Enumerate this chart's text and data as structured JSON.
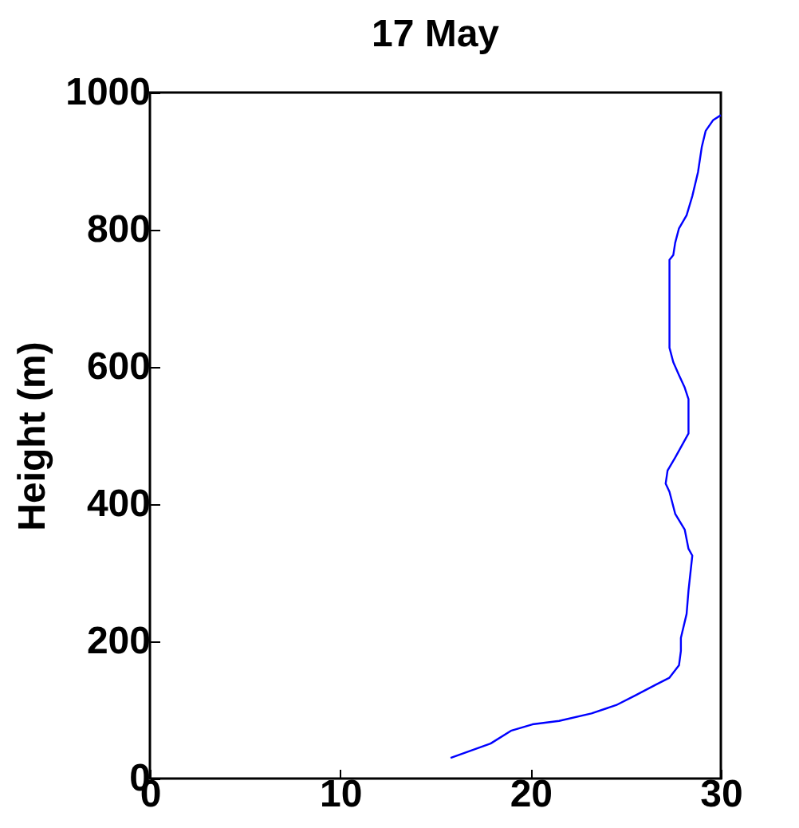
{
  "chart_data": {
    "type": "line",
    "title": "17 May",
    "ylabel": "Height (m)",
    "xlim": [
      0,
      30
    ],
    "xticks": [
      0,
      10,
      20,
      30
    ],
    "ylim": [
      0,
      1000
    ],
    "yticks": [
      0,
      200,
      400,
      600,
      800,
      1000
    ],
    "grid": false,
    "series": [
      {
        "color": "#0000ff",
        "x": [
          15.8,
          17.9,
          19.0,
          20.1,
          21.5,
          23.2,
          24.5,
          25.5,
          26.6,
          27.3,
          27.8,
          27.9,
          27.9,
          28.2,
          28.3,
          28.5,
          28.3,
          28.1,
          27.6,
          27.3,
          27.1,
          27.2,
          27.6,
          28.0,
          28.3,
          28.3,
          28.1,
          27.8,
          27.5,
          27.3,
          27.3,
          27.5,
          27.6,
          27.8,
          28.2,
          28.5,
          28.8,
          29.0,
          29.2,
          29.6,
          30.0
        ],
        "values": [
          30,
          51,
          70,
          79,
          84,
          95,
          107,
          121,
          137,
          147,
          165,
          186,
          205,
          240,
          274,
          325,
          335,
          363,
          386,
          418,
          430,
          449,
          468,
          488,
          503,
          553,
          570,
          588,
          607,
          628,
          756,
          763,
          781,
          802,
          821,
          849,
          884,
          921,
          944,
          960,
          967
        ]
      }
    ]
  }
}
